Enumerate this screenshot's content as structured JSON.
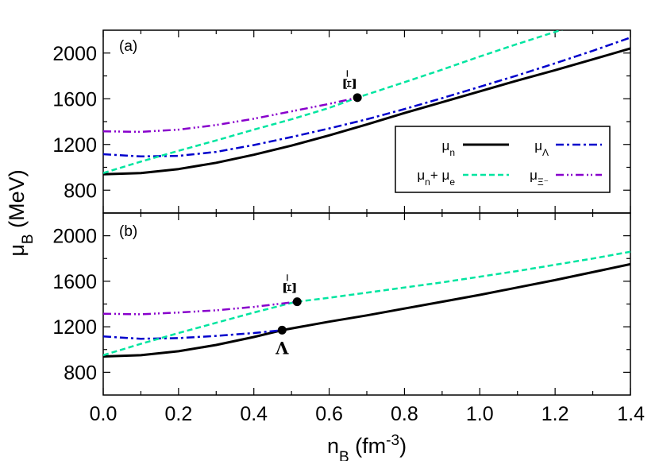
{
  "chart_data": {
    "type": "line",
    "xlabel": "n_B (fm^-3)",
    "xlabel_main": "n",
    "xlabel_sub": "B",
    "xlabel_unit": " (fm",
    "xlabel_sup": "-3",
    "xlabel_close": ")",
    "ylabel": "μ_B (MeV)",
    "ylabel_main": "μ",
    "ylabel_sub": "B",
    "ylabel_unit": " (MeV)",
    "xlim": [
      0.0,
      1.4
    ],
    "ylim": [
      600,
      2200
    ],
    "x_ticks": [
      0.0,
      0.2,
      0.4,
      0.6,
      0.8,
      1.0,
      1.2,
      1.4
    ],
    "x_tick_labels": [
      "0.0",
      "0.2",
      "0.4",
      "0.6",
      "0.8",
      "1.0",
      "1.2",
      "1.4"
    ],
    "y_ticks": [
      800,
      1200,
      1600,
      2000
    ],
    "y_tick_labels": [
      "800",
      "1200",
      "1600",
      "2000"
    ],
    "legend": {
      "placement": "inside panel (a), lower-right",
      "entries": [
        {
          "series": "mu_n",
          "main": "μ",
          "sub": "n",
          "rest": "",
          "rest_sub": ""
        },
        {
          "series": "mu_Lambda",
          "main": "μ",
          "sub": "Λ",
          "rest": "",
          "rest_sub": ""
        },
        {
          "series": "mu_n_plus_mu_e",
          "main": "μ",
          "sub": "n",
          "rest": "+ μ",
          "rest_sub": "e"
        },
        {
          "series": "mu_Xi",
          "main": "μ",
          "sub": "Ξ⁻",
          "rest": "",
          "rest_sub": ""
        }
      ]
    },
    "panels": [
      {
        "tag": "(a)",
        "series": [
          {
            "key": "mu_n",
            "color": "#000000",
            "style": "solid",
            "x": [
              0.0,
              0.1,
              0.2,
              0.3,
              0.4,
              0.5,
              0.6,
              0.7,
              0.8,
              0.9,
              1.0,
              1.1,
              1.2,
              1.3,
              1.4
            ],
            "y": [
              939,
              950,
              985,
              1040,
              1110,
              1190,
              1280,
              1375,
              1475,
              1570,
              1665,
              1760,
              1850,
              1945,
              2040
            ]
          },
          {
            "key": "mu_Lambda",
            "color": "#0000cc",
            "style": "dashdot",
            "x": [
              0.0,
              0.1,
              0.2,
              0.3,
              0.4,
              0.5,
              0.6,
              0.7,
              0.8,
              0.9,
              1.0,
              1.1,
              1.2,
              1.3,
              1.4
            ],
            "y": [
              1115,
              1095,
              1100,
              1135,
              1195,
              1265,
              1340,
              1420,
              1510,
              1605,
              1705,
              1805,
              1910,
              2020,
              2135
            ]
          },
          {
            "key": "mu_n_plus_mu_e",
            "color": "#00e5a0",
            "style": "dashed",
            "x": [
              0.0,
              0.1,
              0.2,
              0.3,
              0.4,
              0.5,
              0.6,
              0.675,
              0.8,
              0.9,
              1.0,
              1.1,
              1.2,
              1.3
            ],
            "y": [
              950,
              1050,
              1145,
              1235,
              1330,
              1420,
              1520,
              1610,
              1745,
              1855,
              1970,
              2080,
              2185,
              2300
            ]
          },
          {
            "key": "mu_Xi",
            "color": "#8800cc",
            "style": "dashdotdot",
            "x": [
              0.0,
              0.1,
              0.2,
              0.3,
              0.4,
              0.5,
              0.6,
              0.675
            ],
            "y": [
              1315,
              1310,
              1330,
              1370,
              1425,
              1490,
              1555,
              1610
            ]
          }
        ],
        "markers": [
          {
            "x": 0.675,
            "y": 1610,
            "label": "Ξ⁻"
          }
        ]
      },
      {
        "tag": "(b)",
        "series": [
          {
            "key": "mu_n",
            "color": "#000000",
            "style": "solid",
            "x": [
              0.0,
              0.1,
              0.2,
              0.3,
              0.4,
              0.475,
              0.6,
              0.7,
              0.8,
              0.9,
              1.0,
              1.1,
              1.2,
              1.3,
              1.4
            ],
            "y": [
              939,
              950,
              985,
              1040,
              1110,
              1170,
              1245,
              1300,
              1360,
              1420,
              1480,
              1545,
              1610,
              1680,
              1750
            ]
          },
          {
            "key": "mu_Lambda",
            "color": "#0000cc",
            "style": "dashdot",
            "x": [
              0.0,
              0.1,
              0.2,
              0.3,
              0.4,
              0.475
            ],
            "y": [
              1115,
              1095,
              1100,
              1120,
              1145,
              1170
            ]
          },
          {
            "key": "mu_n_plus_mu_e",
            "color": "#00e5a0",
            "style": "dashed",
            "x": [
              0.0,
              0.1,
              0.2,
              0.3,
              0.4,
              0.5,
              0.515,
              0.6,
              0.7,
              0.8,
              0.9,
              1.0,
              1.1,
              1.2,
              1.3,
              1.4
            ],
            "y": [
              950,
              1050,
              1145,
              1235,
              1325,
              1410,
              1420,
              1455,
              1500,
              1545,
              1590,
              1640,
              1690,
              1745,
              1800,
              1860
            ]
          },
          {
            "key": "mu_Xi",
            "color": "#8800cc",
            "style": "dashdotdot",
            "x": [
              0.0,
              0.1,
              0.2,
              0.3,
              0.4,
              0.515
            ],
            "y": [
              1315,
              1310,
              1325,
              1345,
              1375,
              1420
            ]
          }
        ],
        "markers": [
          {
            "x": 0.475,
            "y": 1170,
            "label": "Λ"
          },
          {
            "x": 0.515,
            "y": 1420,
            "label": "Ξ⁻"
          }
        ]
      }
    ]
  }
}
